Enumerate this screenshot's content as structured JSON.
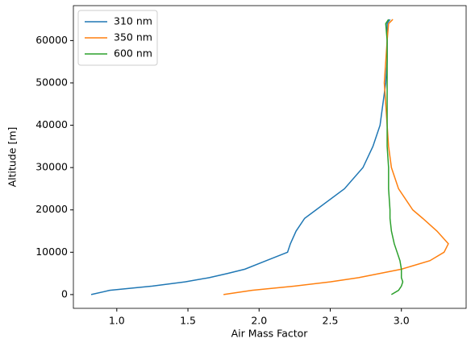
{
  "chart_data": {
    "type": "line",
    "xlabel": "Air Mass Factor",
    "ylabel": "Altitude [m]",
    "y": [
      0,
      1000,
      2000,
      3000,
      4000,
      5000,
      6000,
      8000,
      10000,
      12000,
      15000,
      18000,
      20000,
      25000,
      30000,
      35000,
      40000,
      45000,
      50000,
      55000,
      60000,
      64000,
      65000
    ],
    "series": [
      {
        "name": "310 nm",
        "color": "#1f77b4",
        "values": [
          0.82,
          0.95,
          1.25,
          1.48,
          1.65,
          1.78,
          1.9,
          2.05,
          2.2,
          2.22,
          2.26,
          2.32,
          2.4,
          2.6,
          2.73,
          2.8,
          2.85,
          2.87,
          2.89,
          2.9,
          2.9,
          2.9,
          2.92
        ]
      },
      {
        "name": "350 nm",
        "color": "#ff7f0e",
        "values": [
          1.75,
          1.95,
          2.25,
          2.5,
          2.7,
          2.85,
          3.0,
          3.2,
          3.3,
          3.33,
          3.25,
          3.15,
          3.08,
          2.98,
          2.93,
          2.91,
          2.9,
          2.89,
          2.88,
          2.89,
          2.9,
          2.91,
          2.94
        ]
      },
      {
        "name": "600 nm",
        "color": "#2ca02c",
        "values": [
          2.93,
          2.98,
          3.0,
          3.01,
          3.0,
          3.0,
          3.0,
          2.99,
          2.97,
          2.95,
          2.93,
          2.92,
          2.92,
          2.91,
          2.91,
          2.9,
          2.9,
          2.9,
          2.9,
          2.9,
          2.9,
          2.89,
          2.91
        ]
      }
    ],
    "xlim": [
      0.695,
      3.455
    ],
    "xticks": [
      {
        "value": 1,
        "label": "1.0"
      },
      1.5,
      {
        "value": 2,
        "label": "2.0"
      },
      2.5,
      {
        "value": 3,
        "label": "3.0"
      }
    ],
    "ylim": [
      -3250,
      68250
    ],
    "yticks": [
      0,
      10000,
      20000,
      30000,
      40000,
      50000,
      60000
    ],
    "legend": "upper left",
    "grid": false
  }
}
